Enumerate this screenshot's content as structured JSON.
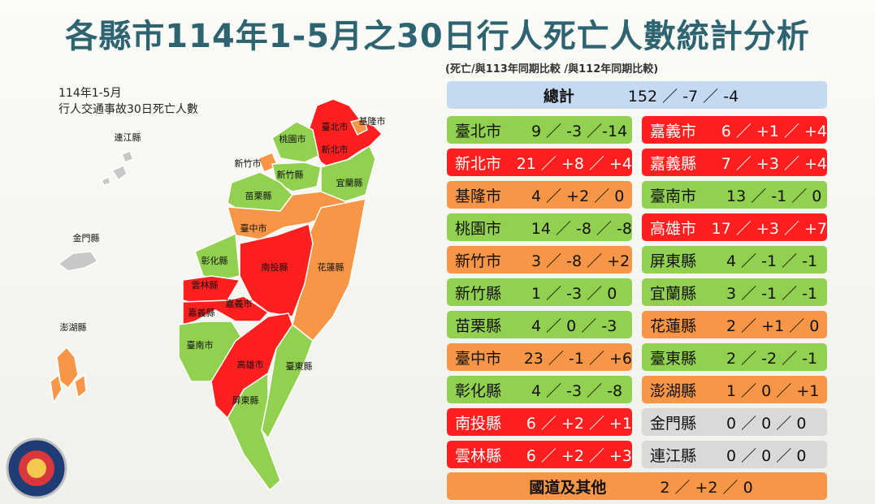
{
  "title": "各縣市114年1-5月之30日行人死亡人數統計分析",
  "subtitle": "(死亡/與113年同期比較 /與112年同期比較)",
  "map": {
    "caption": [
      "114年1-5月",
      "行人交通事故30日死亡人數"
    ],
    "labels": [
      "基隆市",
      "臺北市",
      "新北市",
      "桃園市",
      "新竹市",
      "新竹縣",
      "宜蘭縣",
      "苗栗縣",
      "臺中市",
      "花蓮縣",
      "彰化縣",
      "南投縣",
      "雲林縣",
      "嘉義市",
      "嘉義縣",
      "臺南市",
      "高雄市",
      "臺東縣",
      "屏東縣",
      "連江縣",
      "金門縣",
      "澎湖縣"
    ]
  },
  "total": {
    "label": "總計",
    "values": "152 ／ -7 ／ -4",
    "color": "#c5d9f1"
  },
  "table": {
    "left": [
      {
        "name": "臺北市",
        "values": "9 ／ -3 ／-14",
        "color": "#92d050"
      },
      {
        "name": "新北市",
        "values": "21 ／ +8 ／ +4",
        "color": "#ff1f1f"
      },
      {
        "name": "基隆市",
        "values": "4 ／ +2 ／ 0",
        "color": "#f79646"
      },
      {
        "name": "桃園市",
        "values": "14 ／ -8 ／ -8",
        "color": "#92d050"
      },
      {
        "name": "新竹市",
        "values": "3 ／ -8 ／ +2",
        "color": "#f79646"
      },
      {
        "name": "新竹縣",
        "values": "1 ／ -3 ／ 0",
        "color": "#92d050"
      },
      {
        "name": "苗栗縣",
        "values": "4 ／ 0 ／ -3",
        "color": "#92d050"
      },
      {
        "name": "臺中市",
        "values": "23 ／ -1 ／ +6",
        "color": "#f79646"
      },
      {
        "name": "彰化縣",
        "values": "4 ／ -3 ／ -8",
        "color": "#92d050"
      },
      {
        "name": "南投縣",
        "values": "6 ／ +2 ／ +1",
        "color": "#ff1f1f"
      },
      {
        "name": "雲林縣",
        "values": "6 ／ +2 ／ +3",
        "color": "#ff1f1f"
      }
    ],
    "right": [
      {
        "name": "嘉義市",
        "values": "6 ／ +1 ／ +4",
        "color": "#ff1f1f"
      },
      {
        "name": "嘉義縣",
        "values": "7 ／ +3 ／ +4",
        "color": "#ff1f1f"
      },
      {
        "name": "臺南市",
        "values": "13 ／ -1 ／ 0",
        "color": "#92d050"
      },
      {
        "name": "高雄市",
        "values": "17 ／ +3 ／ +7",
        "color": "#ff1f1f"
      },
      {
        "name": "屏東縣",
        "values": "4 ／ -1 ／ -1",
        "color": "#92d050"
      },
      {
        "name": "宜蘭縣",
        "values": "3 ／ -1 ／ -1",
        "color": "#92d050"
      },
      {
        "name": "花蓮縣",
        "values": "2 ／ +1 ／ 0",
        "color": "#f79646"
      },
      {
        "name": "臺東縣",
        "values": "2 ／ -2 ／ -1",
        "color": "#92d050"
      },
      {
        "name": "澎湖縣",
        "values": "1 ／ 0 ／ +1",
        "color": "#f79646"
      },
      {
        "name": "金門縣",
        "values": "0 ／ 0 ／ 0",
        "color": "#d9d9d9"
      },
      {
        "name": "連江縣",
        "values": "0 ／ 0 ／ 0",
        "color": "#d9d9d9"
      }
    ]
  },
  "other": {
    "name": "國道及其他",
    "values": "2 ／ +2 ／ 0",
    "color": "#f79646"
  }
}
